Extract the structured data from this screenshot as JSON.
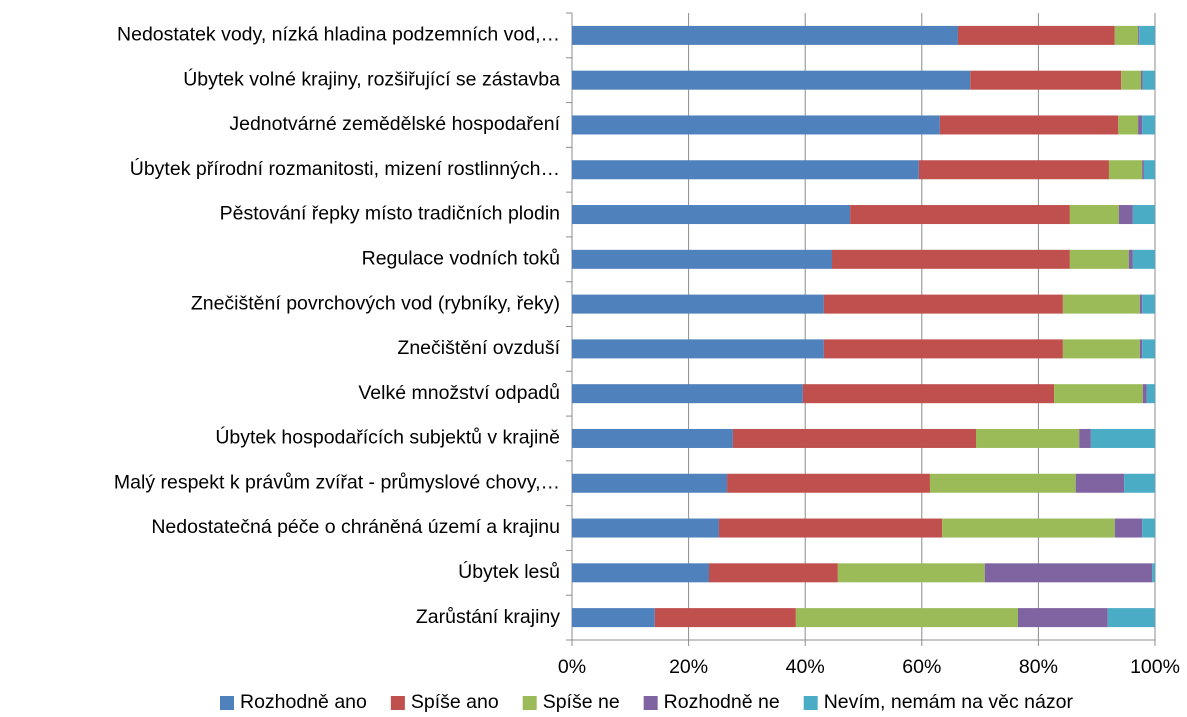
{
  "chart_data": {
    "type": "stacked_barh",
    "categories": [
      "Nedostatek vody, nízká hladina podzemních vod,…",
      "Úbytek volné krajiny, rozšiřující se zástavba",
      "Jednotvárné zemědělské hospodaření",
      "Úbytek přírodní rozmanitosti, mizení rostlinných…",
      "Pěstování řepky místo tradičních plodin",
      "Regulace vodních toků",
      "Znečištění povrchových vod (rybníky, řeky)",
      "Znečištění ovzduší",
      "Velké množství odpadů",
      "Úbytek hospodařících subjektů v krajině",
      "Malý respekt k právům zvířat - průmyslové chovy,…",
      "Nedostatečná péče o chráněná území a krajinu",
      "Úbytek lesů",
      "Zarůstání krajiny"
    ],
    "series": [
      {
        "name": "Rozhodně ano",
        "color": "#4f81bd",
        "values": [
          66.2,
          68.3,
          63.1,
          59.5,
          47.7,
          44.6,
          43.2,
          43.2,
          39.6,
          27.6,
          26.6,
          25.2,
          23.5,
          14.2
        ]
      },
      {
        "name": "Spíše ano",
        "color": "#c0504d",
        "values": [
          26.9,
          25.9,
          30.6,
          32.6,
          37.7,
          40.8,
          41.0,
          41.0,
          43.1,
          41.7,
          34.8,
          38.3,
          22.1,
          24.2
        ]
      },
      {
        "name": "Spíše ne",
        "color": "#9bbb59",
        "values": [
          4.0,
          3.4,
          3.4,
          5.7,
          8.4,
          10.1,
          13.2,
          13.2,
          15.2,
          17.7,
          25.0,
          29.6,
          25.2,
          38.1
        ]
      },
      {
        "name": "Rozhodně ne",
        "color": "#8064a2",
        "values": [
          0.2,
          0.3,
          0.7,
          0.3,
          2.4,
          0.7,
          0.4,
          0.4,
          0.7,
          2.0,
          8.3,
          4.7,
          28.7,
          15.4
        ]
      },
      {
        "name": "Nevím, nemám na věc názor",
        "color": "#4bacc6",
        "values": [
          2.7,
          2.1,
          2.2,
          1.9,
          3.8,
          3.8,
          2.2,
          2.2,
          1.4,
          11.0,
          5.3,
          2.2,
          0.5,
          8.1
        ]
      }
    ],
    "xlim": [
      0,
      100
    ],
    "xticks": [
      {
        "value": 0,
        "label": "0%"
      },
      {
        "value": 20,
        "label": "20%"
      },
      {
        "value": 40,
        "label": "40%"
      },
      {
        "value": 60,
        "label": "60%"
      },
      {
        "value": 80,
        "label": "80%"
      },
      {
        "value": 100,
        "label": "100%"
      }
    ],
    "grid": true,
    "legend": "bottom"
  }
}
